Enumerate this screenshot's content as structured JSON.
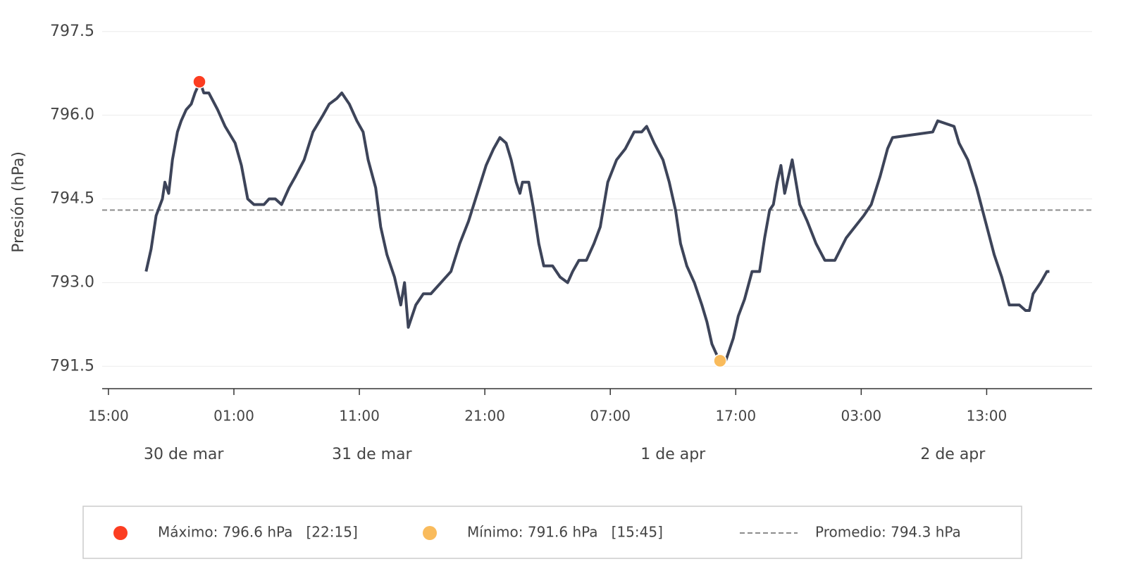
{
  "chart_data": {
    "type": "line",
    "y_label": "Presión (hPa)",
    "xlim": [
      14.5,
      93.4
    ],
    "xticks": [
      {
        "value": 15,
        "label": "15:00"
      },
      {
        "value": 25,
        "label": "01:00"
      },
      {
        "value": 35,
        "label": "11:00"
      },
      {
        "value": 45,
        "label": "21:00"
      },
      {
        "value": 55,
        "label": "07:00"
      },
      {
        "value": 65,
        "label": "17:00"
      },
      {
        "value": 75,
        "label": "03:00"
      },
      {
        "value": 85,
        "label": "13:00"
      }
    ],
    "day_labels": [
      {
        "value": 21,
        "label": "30 de mar"
      },
      {
        "value": 36,
        "label": "31 de mar"
      },
      {
        "value": 60,
        "label": "1 de apr"
      },
      {
        "value": 82.3,
        "label": "2 de apr"
      }
    ],
    "ylim": [
      791.1,
      797.8
    ],
    "yticks": [
      791.5,
      {
        "value": 793,
        "label": "793.0"
      },
      794.5,
      {
        "value": 796,
        "label": "796.0"
      },
      797.5
    ],
    "grid": true,
    "series": [
      {
        "color": "#3d4459",
        "x": [
          18.0,
          18.4,
          18.8,
          19.3,
          19.5,
          19.8,
          20.1,
          20.5,
          20.8,
          21.2,
          21.6,
          21.9,
          22.3,
          22.6,
          23.0,
          23.7,
          24.3,
          25.1,
          25.6,
          26.1,
          26.6,
          27.4,
          27.8,
          28.3,
          28.8,
          29.4,
          29.9,
          30.6,
          31.3,
          32.1,
          32.6,
          33.2,
          33.6,
          34.2,
          34.8,
          35.3,
          35.7,
          36.3,
          36.7,
          37.2,
          37.8,
          38.3,
          38.6,
          38.9,
          39.5,
          40.1,
          40.7,
          41.5,
          42.3,
          43.0,
          43.7,
          44.4,
          45.1,
          45.7,
          46.2,
          46.7,
          47.1,
          47.5,
          47.8,
          48.0,
          48.5,
          48.9,
          49.3,
          49.7,
          50.4,
          51.0,
          51.6,
          52.0,
          52.5,
          53.1,
          53.7,
          54.2,
          54.8,
          55.5,
          56.2,
          56.9,
          57.5,
          57.9,
          58.5,
          59.2,
          59.7,
          60.2,
          60.6,
          61.1,
          61.7,
          62.3,
          62.7,
          63.1,
          63.7,
          64.2,
          64.8,
          65.2,
          65.7,
          66.3,
          66.9,
          67.3,
          67.7,
          68.0,
          68.3,
          68.6,
          68.9,
          69.2,
          69.5,
          69.8,
          70.1,
          70.7,
          71.4,
          72.1,
          72.9,
          73.8,
          74.5,
          75.2,
          75.8,
          76.5,
          77.1,
          77.5,
          80.7,
          81.1,
          82.4,
          82.8,
          83.5,
          84.2,
          84.9,
          85.6,
          86.2,
          86.8,
          87.6,
          88.1,
          88.4,
          88.7,
          89.3,
          89.8,
          90.0
        ],
        "values": [
          793.2,
          793.6,
          794.2,
          794.5,
          794.8,
          794.6,
          795.2,
          795.7,
          795.9,
          796.1,
          796.2,
          796.4,
          796.6,
          796.4,
          796.4,
          796.1,
          795.8,
          795.5,
          795.1,
          794.5,
          794.4,
          794.4,
          794.5,
          794.5,
          794.4,
          794.7,
          794.9,
          795.2,
          795.7,
          796.0,
          796.2,
          796.3,
          796.4,
          796.2,
          795.9,
          795.7,
          795.2,
          794.7,
          794.0,
          793.5,
          793.1,
          792.6,
          793.0,
          792.2,
          792.6,
          792.8,
          792.8,
          793.0,
          793.2,
          793.7,
          794.1,
          794.6,
          795.1,
          795.4,
          795.6,
          795.5,
          795.2,
          794.8,
          794.6,
          794.8,
          794.8,
          794.3,
          793.7,
          793.3,
          793.3,
          793.1,
          793.0,
          793.2,
          793.4,
          793.4,
          793.7,
          794.0,
          794.8,
          795.2,
          795.4,
          795.7,
          795.7,
          795.8,
          795.5,
          795.2,
          794.8,
          794.3,
          793.7,
          793.3,
          793.0,
          792.6,
          792.3,
          791.9,
          791.6,
          791.6,
          792.0,
          792.4,
          792.7,
          793.2,
          793.2,
          793.8,
          794.3,
          794.4,
          794.8,
          795.1,
          794.6,
          794.9,
          795.2,
          794.8,
          794.4,
          794.1,
          793.7,
          793.4,
          793.4,
          793.8,
          794.0,
          794.2,
          794.4,
          794.9,
          795.4,
          795.6,
          795.7,
          795.9,
          795.8,
          795.5,
          795.2,
          794.7,
          794.1,
          793.5,
          793.1,
          792.6,
          792.6,
          792.5,
          792.5,
          792.8,
          793.0,
          793.2,
          793.2
        ]
      }
    ],
    "markers": [
      {
        "name": "Máximo: 796.6 hPa   [22:15]",
        "color": "#fc3d21",
        "x": 22.25,
        "y": 796.6
      },
      {
        "name": "Mínimo: 791.6 hPa   [15:45]",
        "color": "#f9bb5c",
        "x": 63.75,
        "y": 791.6
      }
    ],
    "average": {
      "name": "Promedio: 794.3 hPa",
      "value": 794.3,
      "color": "#8c8c8c"
    }
  }
}
